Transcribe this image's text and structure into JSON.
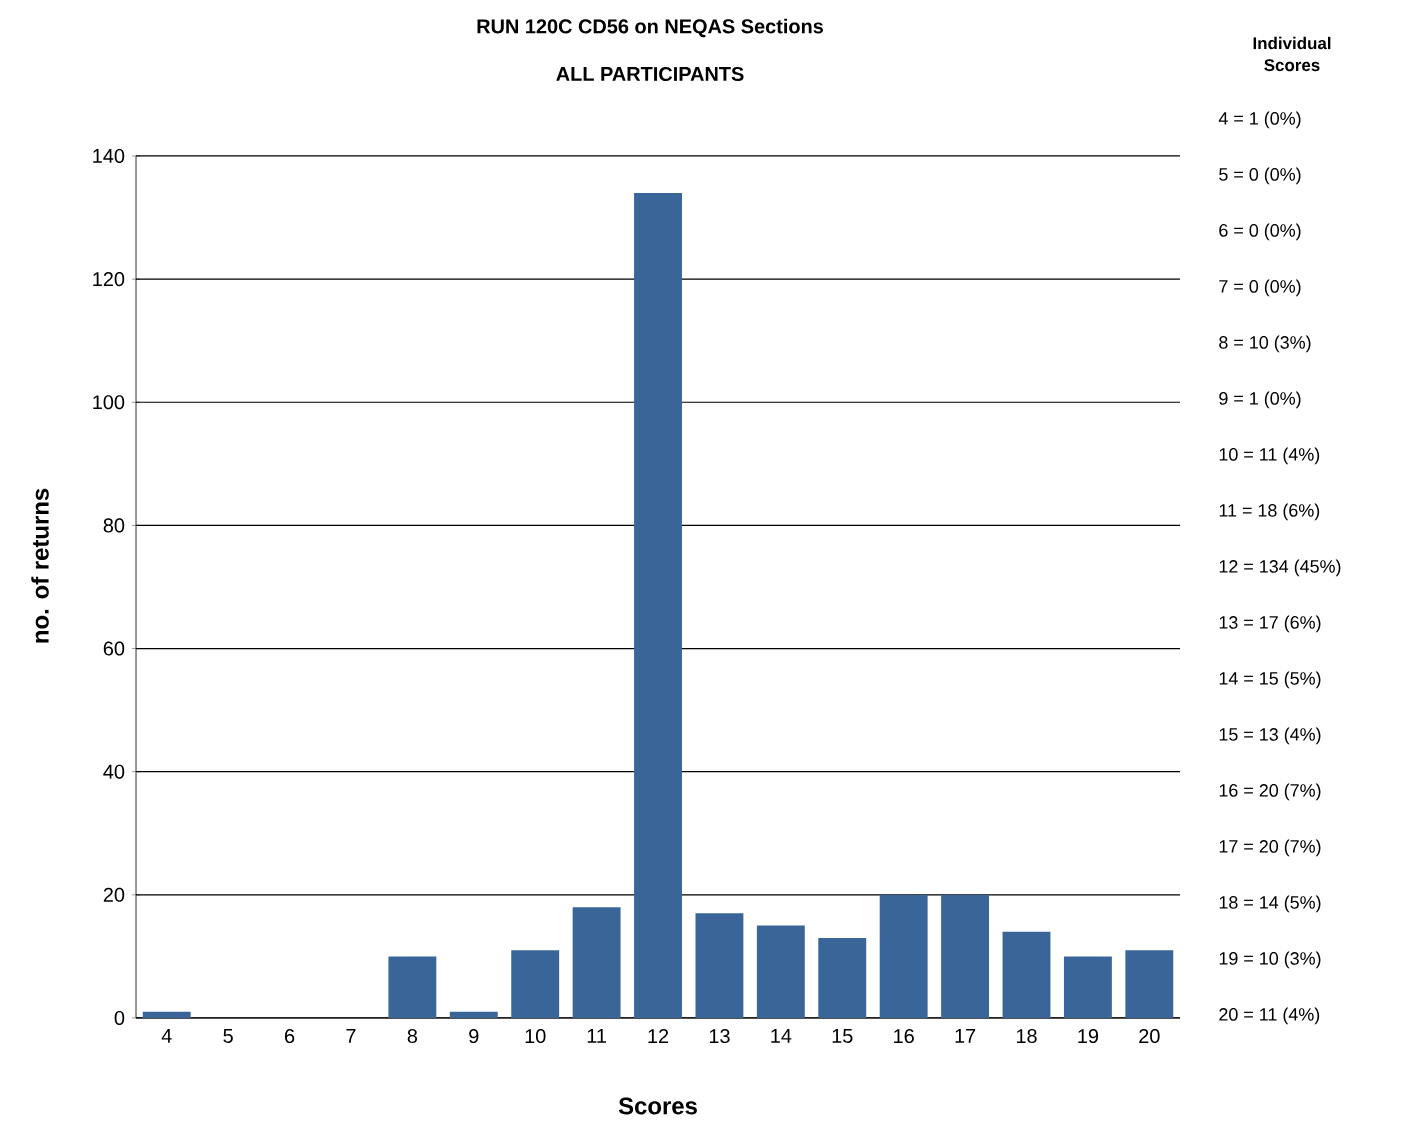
{
  "chart_data": {
    "type": "bar",
    "title": "RUN 120C CD56 on NEQAS Sections",
    "subtitle": "ALL PARTICIPANTS",
    "xlabel": "Scores",
    "ylabel": "no. of returns",
    "categories": [
      "4",
      "5",
      "6",
      "7",
      "8",
      "9",
      "10",
      "11",
      "12",
      "13",
      "14",
      "15",
      "16",
      "17",
      "18",
      "19",
      "20"
    ],
    "values": [
      1,
      0,
      0,
      0,
      10,
      1,
      11,
      18,
      134,
      17,
      15,
      13,
      20,
      20,
      14,
      10,
      11
    ],
    "color": "#3a6598",
    "ylim": [
      0,
      140
    ],
    "yticks": [
      0,
      20,
      40,
      60,
      80,
      100,
      120,
      140
    ],
    "grid": "y",
    "annotations": [
      "Individual Scores",
      "4 = 1 (0%)",
      "5 = 0 (0%)",
      "6 = 0 (0%)",
      "7 = 0 (0%)",
      "8 = 10 (3%)",
      "9 = 1 (0%)",
      "10 = 11 (4%)",
      "11 = 18 (6%)",
      "12 = 134 (45%)",
      "13 = 17 (6%)",
      "14 = 15 (5%)",
      "15 = 13 (4%)",
      "16 = 20 (7%)",
      "17 = 20 (7%)",
      "18 = 14 (5%)",
      "19 = 10 (3%)",
      "20 = 11 (4%)"
    ]
  }
}
